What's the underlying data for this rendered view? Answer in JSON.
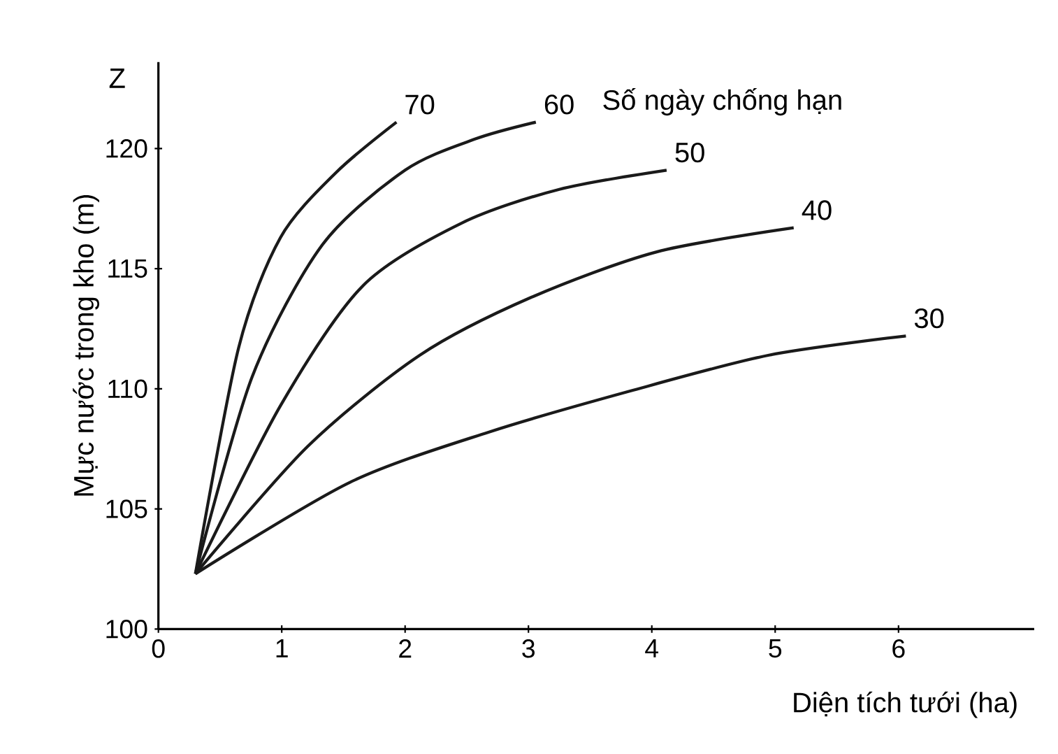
{
  "chart_data": {
    "type": "line",
    "xlabel": "Diện tích tưới (ha)",
    "ylabel": "Mực nước trong kho (m)",
    "legend_title": "Số ngày chống hạn",
    "annotations": [
      "Z"
    ],
    "xlim": [
      0,
      7.1
    ],
    "ylim": [
      100,
      123.6
    ],
    "xticks": [
      0,
      1,
      2,
      3,
      4,
      5,
      6
    ],
    "yticks": [
      100,
      105,
      110,
      115,
      120
    ],
    "grid": false,
    "marker": "none",
    "line_style": "solid",
    "series": [
      {
        "name": "70",
        "color": "#1a1a1a",
        "x": [
          0.3,
          0.65,
          0.99,
          1.44,
          1.93
        ],
        "values": [
          102.3,
          111.7,
          116.3,
          119.0,
          121.1
        ]
      },
      {
        "name": "60",
        "color": "#1a1a1a",
        "x": [
          0.3,
          0.76,
          1.33,
          2.0,
          2.57,
          3.06
        ],
        "values": [
          102.3,
          110.5,
          116.0,
          119.1,
          120.4,
          121.1
        ]
      },
      {
        "name": "50",
        "color": "#1a1a1a",
        "x": [
          0.3,
          0.99,
          1.66,
          2.46,
          3.25,
          4.12
        ],
        "values": [
          102.3,
          109.3,
          114.3,
          116.9,
          118.3,
          119.1
        ]
      },
      {
        "name": "40",
        "color": "#1a1a1a",
        "x": [
          0.3,
          1.21,
          2.12,
          3.02,
          4.04,
          5.15
        ],
        "values": [
          102.3,
          107.6,
          111.4,
          113.8,
          115.7,
          116.7
        ]
      },
      {
        "name": "30",
        "color": "#1a1a1a",
        "x": [
          0.3,
          1.55,
          2.68,
          3.82,
          4.95,
          6.06
        ],
        "values": [
          102.3,
          106.1,
          108.2,
          109.9,
          111.4,
          112.2
        ]
      }
    ]
  }
}
